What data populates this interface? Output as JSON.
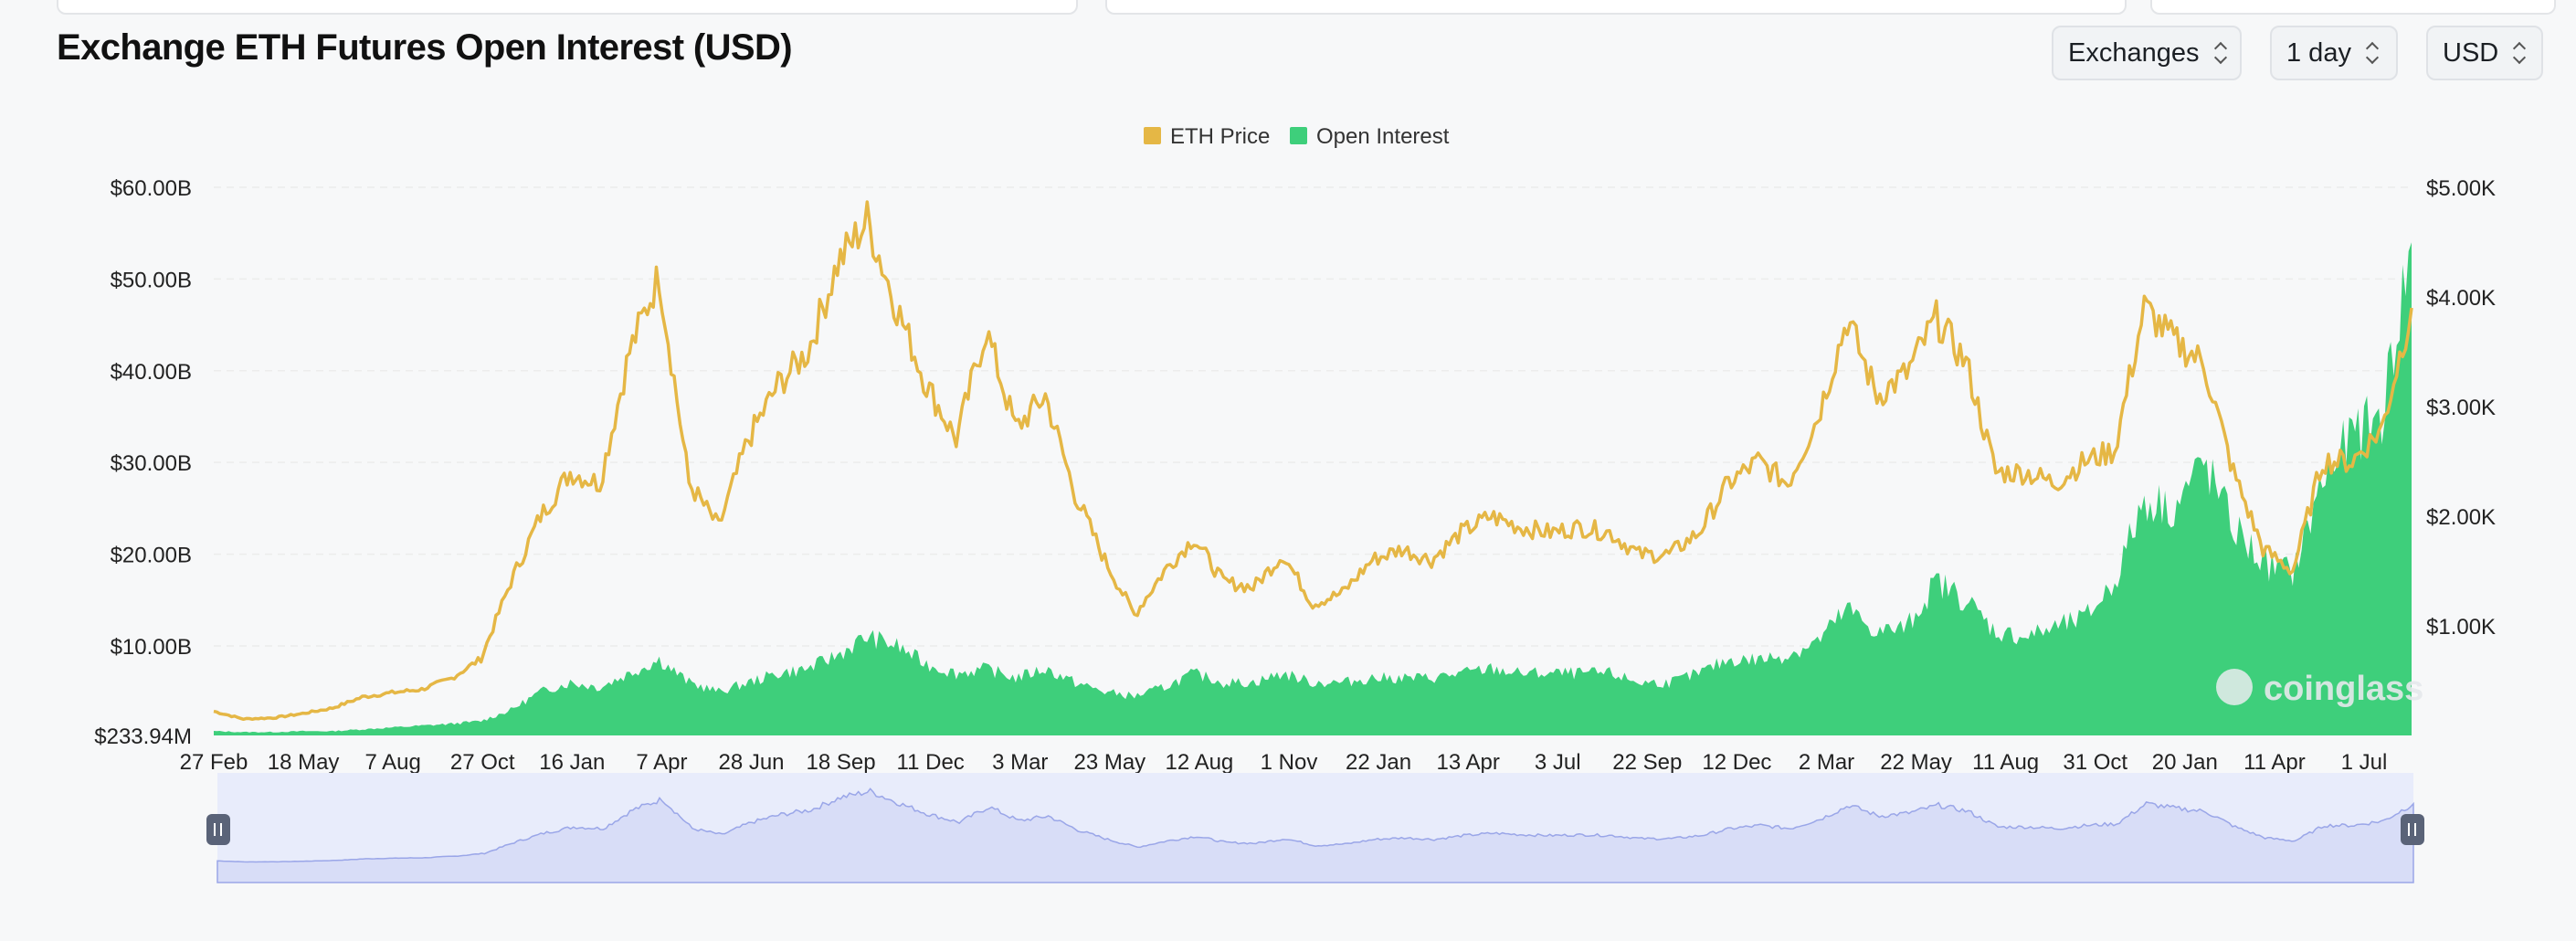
{
  "page": {
    "title": "Exchange ETH Futures Open Interest (USD)"
  },
  "controls": {
    "exchanges": "Exchanges",
    "interval": "1 day",
    "currency": "USD"
  },
  "watermark": "coinglass",
  "colors": {
    "eth_price": "#e5b745",
    "open_interest": "#3ecf7b",
    "navigator_fill": "#d8ddf7",
    "navigator_line": "#9aa6e8",
    "grid": "#ececec"
  },
  "chart_data": {
    "type": "line",
    "legend": {
      "position": "top-center",
      "items": [
        "ETH Price",
        "Open Interest"
      ]
    },
    "grid": true,
    "left_axis": {
      "ticks": [
        "$233.94M",
        "$10.00B",
        "$20.00B",
        "$30.00B",
        "$40.00B",
        "$50.00B",
        "$60.00B"
      ],
      "values": [
        0.23394,
        10,
        20,
        30,
        40,
        50,
        60
      ],
      "range": [
        0.23394,
        60
      ],
      "unit": "B"
    },
    "right_axis": {
      "ticks": [
        "$1.00K",
        "$2.00K",
        "$3.00K",
        "$4.00K",
        "$5.00K"
      ],
      "values": [
        1000,
        2000,
        3000,
        4000,
        5000
      ],
      "range": [
        0,
        5000
      ]
    },
    "x_ticks": [
      "27 Feb",
      "18 May",
      "7 Aug",
      "27 Oct",
      "16 Jan",
      "7 Apr",
      "28 Jun",
      "18 Sep",
      "11 Dec",
      "3 Mar",
      "23 May",
      "12 Aug",
      "1 Nov",
      "22 Jan",
      "13 Apr",
      "3 Jul",
      "22 Sep",
      "12 Dec",
      "2 Mar",
      "22 May",
      "11 Aug",
      "31 Oct",
      "20 Jan",
      "11 Apr",
      "1 Jul"
    ],
    "series": [
      {
        "name": "ETH Price",
        "axis": "right",
        "values": [
          220,
          150,
          160,
          200,
          250,
          350,
          390,
          420,
          520,
          700,
          1400,
          2000,
          2400,
          2300,
          3500,
          4200,
          2300,
          1900,
          2700,
          3200,
          3500,
          4300,
          4700,
          3900,
          3200,
          2700,
          3700,
          2800,
          3100,
          2200,
          1600,
          1100,
          1500,
          1800,
          1400,
          1350,
          1650,
          1200,
          1300,
          1600,
          1700,
          1600,
          1850,
          2000,
          1900,
          1850,
          1900,
          1850,
          1650,
          1650,
          1850,
          2300,
          2500,
          2300,
          2900,
          3800,
          3100,
          3300,
          3800,
          3400,
          2400,
          2400,
          2300,
          2500,
          2600,
          3900,
          3600,
          3400,
          2400,
          1700,
          1500,
          2500,
          2500,
          2800,
          3900
        ]
      },
      {
        "name": "Open Interest",
        "axis": "left",
        "values": [
          0.7,
          0.6,
          0.6,
          0.7,
          0.7,
          0.9,
          1.1,
          1.3,
          1.5,
          1.8,
          3,
          5,
          6,
          5.5,
          7,
          8.5,
          6,
          5,
          6,
          7,
          7.5,
          9,
          11,
          10,
          8,
          7,
          7.5,
          6.5,
          7.5,
          6,
          5,
          4.5,
          5.5,
          7,
          6,
          6,
          7,
          6,
          6,
          6.5,
          6.5,
          6.5,
          7,
          7.5,
          7,
          7,
          7,
          7,
          6,
          6,
          7,
          8.5,
          8.5,
          9,
          10.5,
          14,
          11.5,
          12,
          17,
          15,
          11.5,
          11,
          12,
          13,
          17,
          26,
          25,
          30,
          23,
          19,
          18,
          28,
          33,
          35,
          54
        ]
      }
    ]
  }
}
